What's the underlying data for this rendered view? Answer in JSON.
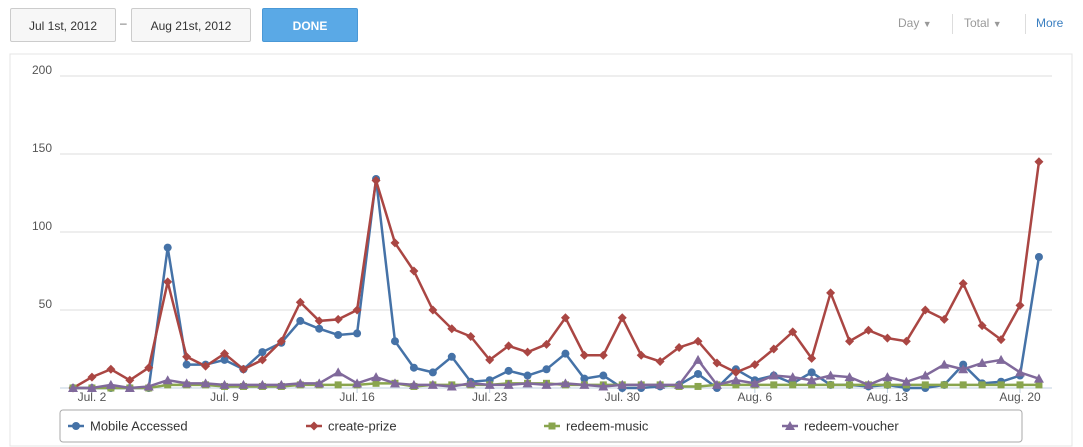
{
  "controls": {
    "start_date": "Jul 1st, 2012",
    "separator": "–",
    "end_date": "Aug 21st, 2012",
    "done": "DONE",
    "interval": "Day",
    "aggregate": "Total",
    "more": "More"
  },
  "chart_data": {
    "type": "line",
    "categories": [
      null,
      "Jul. 2",
      null,
      null,
      null,
      null,
      null,
      null,
      "Jul. 9",
      null,
      null,
      null,
      null,
      null,
      null,
      "Jul. 16",
      null,
      null,
      null,
      null,
      null,
      null,
      "Jul. 23",
      null,
      null,
      null,
      null,
      null,
      null,
      "Jul. 30",
      null,
      null,
      null,
      null,
      null,
      null,
      "Aug. 6",
      null,
      null,
      null,
      null,
      null,
      null,
      "Aug. 13",
      null,
      null,
      null,
      null,
      null,
      null,
      "Aug. 20",
      null
    ],
    "ylim": [
      0,
      200
    ],
    "yticks": [
      50,
      100,
      150,
      200
    ],
    "grid": true,
    "series": [
      {
        "name": "Mobile Accessed",
        "color": "#4572a7",
        "marker": "circle",
        "values": [
          0,
          0,
          0,
          0,
          0,
          90,
          15,
          15,
          18,
          12,
          23,
          29,
          43,
          38,
          34,
          35,
          134,
          30,
          13,
          10,
          20,
          4,
          5,
          11,
          8,
          12,
          22,
          6,
          8,
          0,
          0,
          1,
          2,
          9,
          0,
          12,
          5,
          8,
          3,
          10,
          2,
          2,
          1,
          2,
          0,
          0,
          2,
          15,
          3,
          4,
          8,
          84
        ]
      },
      {
        "name": "create-prize",
        "color": "#aa4643",
        "marker": "diamond",
        "values": [
          0,
          7,
          12,
          5,
          13,
          68,
          20,
          14,
          22,
          12,
          18,
          30,
          55,
          43,
          44,
          50,
          133,
          93,
          75,
          50,
          38,
          33,
          18,
          27,
          23,
          28,
          45,
          21,
          21,
          45,
          21,
          17,
          26,
          30,
          16,
          10,
          15,
          25,
          36,
          19,
          61,
          30,
          37,
          32,
          30,
          50,
          44,
          67,
          40,
          31,
          53,
          145
        ]
      },
      {
        "name": "redeem-music",
        "color": "#89a54e",
        "marker": "square",
        "values": [
          0,
          0,
          0,
          0,
          0,
          2,
          2,
          2,
          1,
          1,
          1,
          1,
          2,
          2,
          2,
          2,
          3,
          3,
          1,
          2,
          2,
          2,
          2,
          3,
          3,
          3,
          2,
          2,
          2,
          2,
          2,
          2,
          1,
          1,
          2,
          2,
          2,
          2,
          2,
          2,
          2,
          2,
          2,
          2,
          2,
          2,
          2,
          2,
          2,
          2,
          2,
          2
        ]
      },
      {
        "name": "redeem-voucher",
        "color": "#80699b",
        "marker": "triangle",
        "values": [
          0,
          0,
          2,
          0,
          1,
          5,
          3,
          3,
          2,
          2,
          2,
          2,
          3,
          3,
          10,
          3,
          7,
          3,
          2,
          2,
          1,
          3,
          2,
          2,
          3,
          2,
          3,
          2,
          1,
          2,
          2,
          2,
          2,
          18,
          2,
          5,
          3,
          8,
          7,
          5,
          8,
          7,
          2,
          7,
          4,
          8,
          15,
          12,
          16,
          18,
          10,
          6
        ]
      }
    ]
  }
}
